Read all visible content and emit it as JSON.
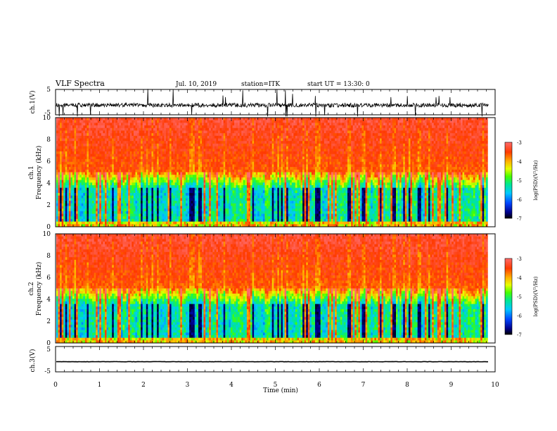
{
  "header": {
    "title": "VLF Spectra",
    "date": "Jul. 10, 2019",
    "station": "station=ITK",
    "start": "start UT =  13:30: 0"
  },
  "colors": {
    "spectrum_stops": [
      "#000000",
      "#00008c",
      "#0044ff",
      "#00c8ff",
      "#00e890",
      "#44ff00",
      "#e6ff00",
      "#ffb000",
      "#ff3a00",
      "#ff6a6a"
    ],
    "trace": "#000000"
  },
  "chart_data": [
    {
      "type": "line",
      "name": "ch1-waveform",
      "ylabel": "ch.1(V)",
      "ylim": [
        -5,
        5
      ],
      "yticks": [
        "5",
        "-5"
      ],
      "xlim": [
        0,
        10
      ]
    },
    {
      "type": "heatmap",
      "name": "ch1-spectrogram",
      "ylabel": "ch.1",
      "ylabel2": "Frequency (kHz)",
      "ylim": [
        0,
        10
      ],
      "yticks": [
        "0",
        "2",
        "4",
        "6",
        "8",
        "10"
      ],
      "xlim": [
        0,
        10
      ],
      "data_end_x": 9.83,
      "colorbar": {
        "label": "log(PSD)(V²/Hz)",
        "range": [
          -7,
          -3
        ],
        "ticks": [
          "-3",
          "-4",
          "-5",
          "-6",
          "-7"
        ]
      }
    },
    {
      "type": "heatmap",
      "name": "ch2-spectrogram",
      "ylabel": "ch.2",
      "ylabel2": "Frequency (kHz)",
      "ylim": [
        0,
        10
      ],
      "yticks": [
        "0",
        "2",
        "4",
        "6",
        "8",
        "10"
      ],
      "xlim": [
        0,
        10
      ],
      "data_end_x": 9.83,
      "colorbar": {
        "label": "log(PSD)(V²/Hz)",
        "range": [
          -7,
          -3
        ],
        "ticks": [
          "-3",
          "-4",
          "-5",
          "-6",
          "-7"
        ]
      }
    },
    {
      "type": "line",
      "name": "ch3-waveform",
      "ylabel": "ch.3(V)",
      "ylim": [
        -5,
        5
      ],
      "yticks": [
        "5",
        "-5"
      ],
      "xlim": [
        0,
        10
      ],
      "level": -1,
      "xlabel": "Time (min)",
      "xticks": [
        "0",
        "1",
        "2",
        "3",
        "4",
        "5",
        "6",
        "7",
        "8",
        "9",
        "10"
      ]
    }
  ]
}
